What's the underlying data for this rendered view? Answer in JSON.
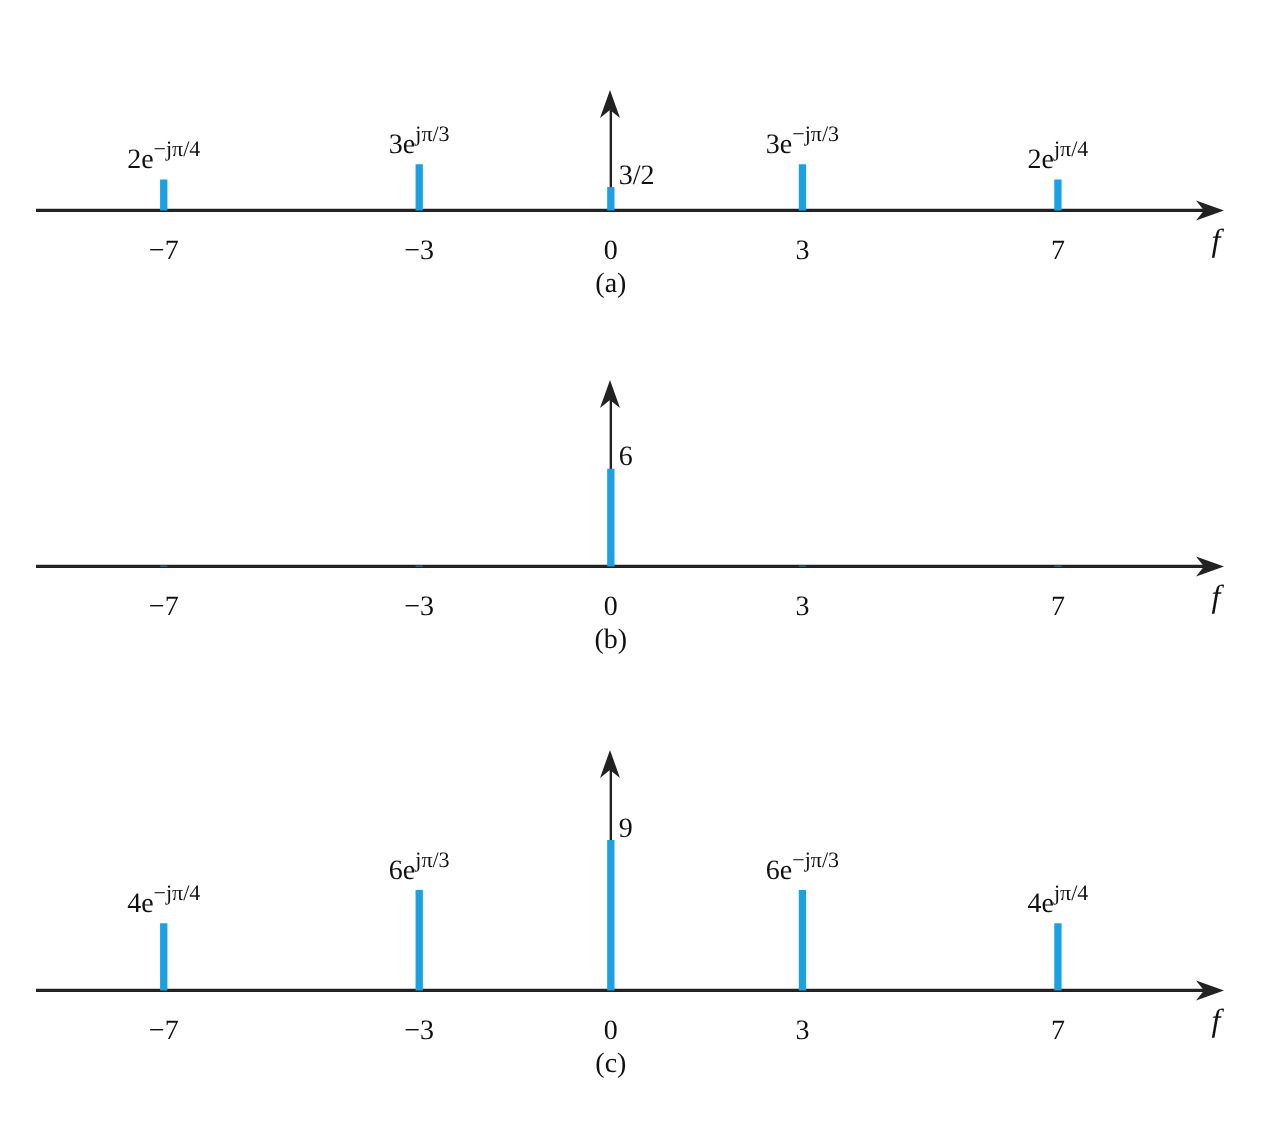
{
  "chart_data": [
    {
      "type": "bar",
      "x": [
        -7,
        -3,
        0,
        3,
        7
      ],
      "values": [
        2,
        3,
        1.5,
        3,
        2
      ],
      "value_labels": [
        "2e$^{−jπ/4}$",
        "3e$^{jπ/3}$",
        "3/2",
        "3e$^{−jπ/3}$",
        "2e$^{jπ/4}$"
      ],
      "color": "#1ba1e2",
      "xlim": [
        -9,
        9.6
      ],
      "xticks": [
        -7,
        -3,
        0,
        3,
        7
      ],
      "xlabel": "f",
      "tick_labels": "x",
      "annotations": [
        "(a)"
      ]
    },
    {
      "type": "bar",
      "x": [
        -7,
        -3,
        0,
        3,
        7
      ],
      "values": [
        0,
        0,
        6,
        0,
        0
      ],
      "value_labels": [
        null,
        null,
        "6",
        null,
        null
      ],
      "color": "#1ba1e2",
      "xlim": [
        -9,
        9.6
      ],
      "xticks": [
        -7,
        -3,
        0,
        3,
        7
      ],
      "xlabel": "f",
      "tick_labels": "x",
      "annotations": [
        "(b)"
      ]
    },
    {
      "type": "bar",
      "x": [
        -7,
        -3,
        0,
        3,
        7
      ],
      "values": [
        4,
        6,
        9,
        6,
        4
      ],
      "value_labels": [
        "4e$^{−jπ/4}$",
        "6e$^{jπ/3}$",
        "9",
        "6e$^{−jπ/3}$",
        "4e$^{jπ/4}$"
      ],
      "color": "#1ba1e2",
      "xlim": [
        -9,
        9.6
      ],
      "xticks": [
        -7,
        -3,
        0,
        3,
        7
      ],
      "xlabel": "f",
      "tick_labels": "x",
      "annotations": [
        "(c)"
      ]
    }
  ]
}
